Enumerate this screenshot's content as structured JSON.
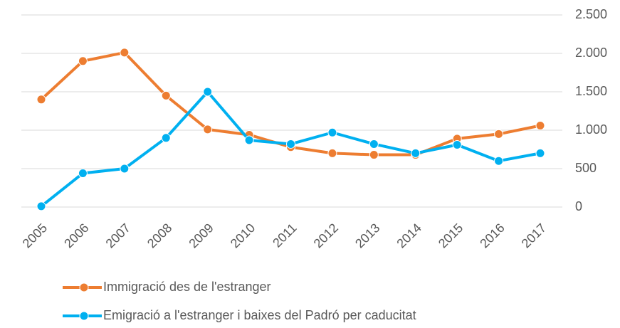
{
  "chart_data": {
    "type": "line",
    "x": [
      "2005",
      "2006",
      "2007",
      "2008",
      "2009",
      "2010",
      "2011",
      "2012",
      "2013",
      "2014",
      "2015",
      "2016",
      "2017"
    ],
    "series": [
      {
        "name": "Immigració des de l'estranger",
        "color": "#ed7d31",
        "values": [
          1400,
          1900,
          2010,
          1450,
          1010,
          940,
          780,
          700,
          680,
          680,
          890,
          950,
          1060
        ]
      },
      {
        "name": "Emigració a l'estranger i  baixes del Padró per caducitat",
        "color": "#00b0f0",
        "values": [
          10,
          440,
          500,
          900,
          1500,
          870,
          820,
          970,
          820,
          700,
          810,
          600,
          700
        ]
      }
    ],
    "ylim": [
      0,
      2500
    ],
    "yticks": [
      0,
      500,
      {
        "value": 1000,
        "label": "1.000"
      },
      {
        "value": 1500,
        "label": "1.500"
      },
      {
        "value": 2000,
        "label": "2.000"
      },
      {
        "value": 2500,
        "label": "2.500"
      }
    ],
    "grid": true,
    "legend": "bottom"
  }
}
